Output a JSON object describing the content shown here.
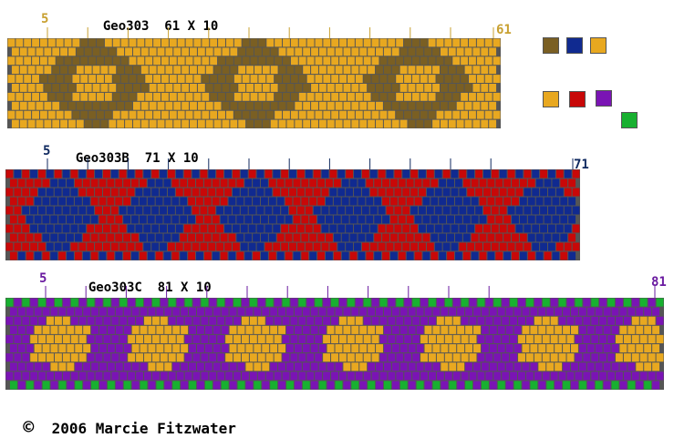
{
  "patterns": [
    {
      "name": "Geo303",
      "dims": "61 X 10",
      "start_label": "5",
      "end_label": "61",
      "columns": 61,
      "rows": 10,
      "colors": [
        "#7a5f23",
        "#e8a820"
      ],
      "label_color": "#c8a030"
    },
    {
      "name": "Geo303B",
      "dims": "71 X 10",
      "start_label": "5",
      "end_label": "71",
      "columns": 71,
      "rows": 10,
      "colors": [
        "#c80808",
        "#102a90"
      ],
      "label_color": "#102a60"
    },
    {
      "name": "Geo303C",
      "dims": "81 X 10",
      "start_label": "5",
      "end_label": "81",
      "columns": 81,
      "rows": 10,
      "colors": [
        "#7a14b4",
        "#e8a820",
        "#18b030"
      ],
      "label_color": "#6a1aa0"
    }
  ],
  "swatches": [
    {
      "color": "#7a5f23",
      "name": "brown"
    },
    {
      "color": "#102a90",
      "name": "navy"
    },
    {
      "color": "#e8a820",
      "name": "gold"
    },
    {
      "color": "#e8a820",
      "name": "gold-2"
    },
    {
      "color": "#c80808",
      "name": "red"
    },
    {
      "color": "#7a14b4",
      "name": "purple"
    },
    {
      "color": "#18b030",
      "name": "green"
    }
  ],
  "copyright": {
    "symbol": "©",
    "text": "2006 Marcie Fitzwater"
  }
}
